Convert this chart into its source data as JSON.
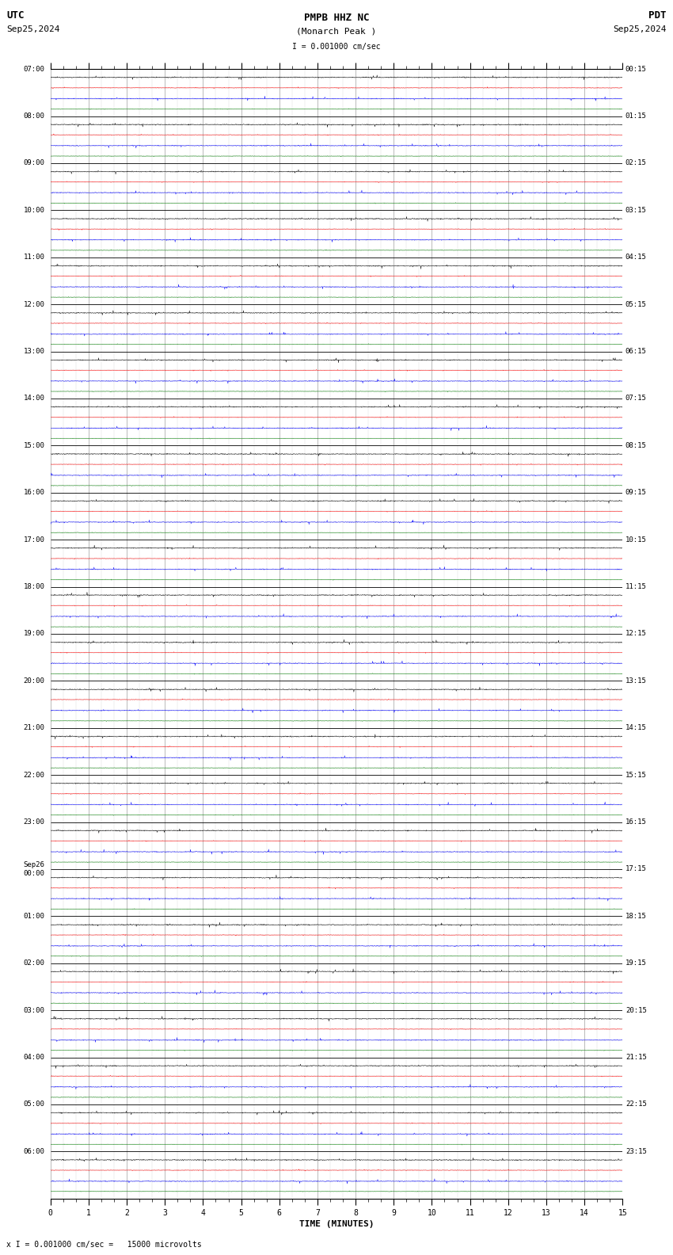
{
  "title_line1": "PMPB HHZ NC",
  "title_line2": "(Monarch Peak )",
  "scale_label": "I = 0.001000 cm/sec",
  "utc_label": "UTC",
  "pdt_label": "PDT",
  "date_left": "Sep25,2024",
  "date_right": "Sep25,2024",
  "xlabel": "TIME (MINUTES)",
  "footer": "x I = 0.001000 cm/sec =   15000 microvolts",
  "bg_color": "#ffffff",
  "trace_colors": [
    "#000000",
    "#ff0000",
    "#0000ff",
    "#008000"
  ],
  "num_rows": 24,
  "minutes_per_row": 15,
  "traces_per_row": 4,
  "fig_width": 8.5,
  "fig_height": 15.84,
  "noise_amps": [
    0.012,
    0.006,
    0.01,
    0.005
  ],
  "spike_prob": 0.008,
  "spike_amp_mult": [
    3.0,
    2.0,
    3.5,
    1.5
  ],
  "left_time_labels": [
    "07:00",
    "08:00",
    "09:00",
    "10:00",
    "11:00",
    "12:00",
    "13:00",
    "14:00",
    "15:00",
    "16:00",
    "17:00",
    "18:00",
    "19:00",
    "20:00",
    "21:00",
    "22:00",
    "23:00",
    "Sep26\n00:00",
    "01:00",
    "02:00",
    "03:00",
    "04:00",
    "05:00",
    "06:00"
  ],
  "right_time_labels": [
    "00:15",
    "01:15",
    "02:15",
    "03:15",
    "04:15",
    "05:15",
    "06:15",
    "07:15",
    "08:15",
    "09:15",
    "10:15",
    "11:15",
    "12:15",
    "13:15",
    "14:15",
    "15:15",
    "16:15",
    "17:15",
    "18:15",
    "19:15",
    "20:15",
    "21:15",
    "22:15",
    "23:15"
  ],
  "grid_minor_color": "#cccccc",
  "grid_major_color": "#888888",
  "row_div_color": "#000000",
  "label_fontsize": 6.5,
  "title_fontsize": 9,
  "subtitle_fontsize": 8,
  "scale_fontsize": 7,
  "axis_label_fontsize": 8,
  "tick_fontsize": 7,
  "footer_fontsize": 7
}
